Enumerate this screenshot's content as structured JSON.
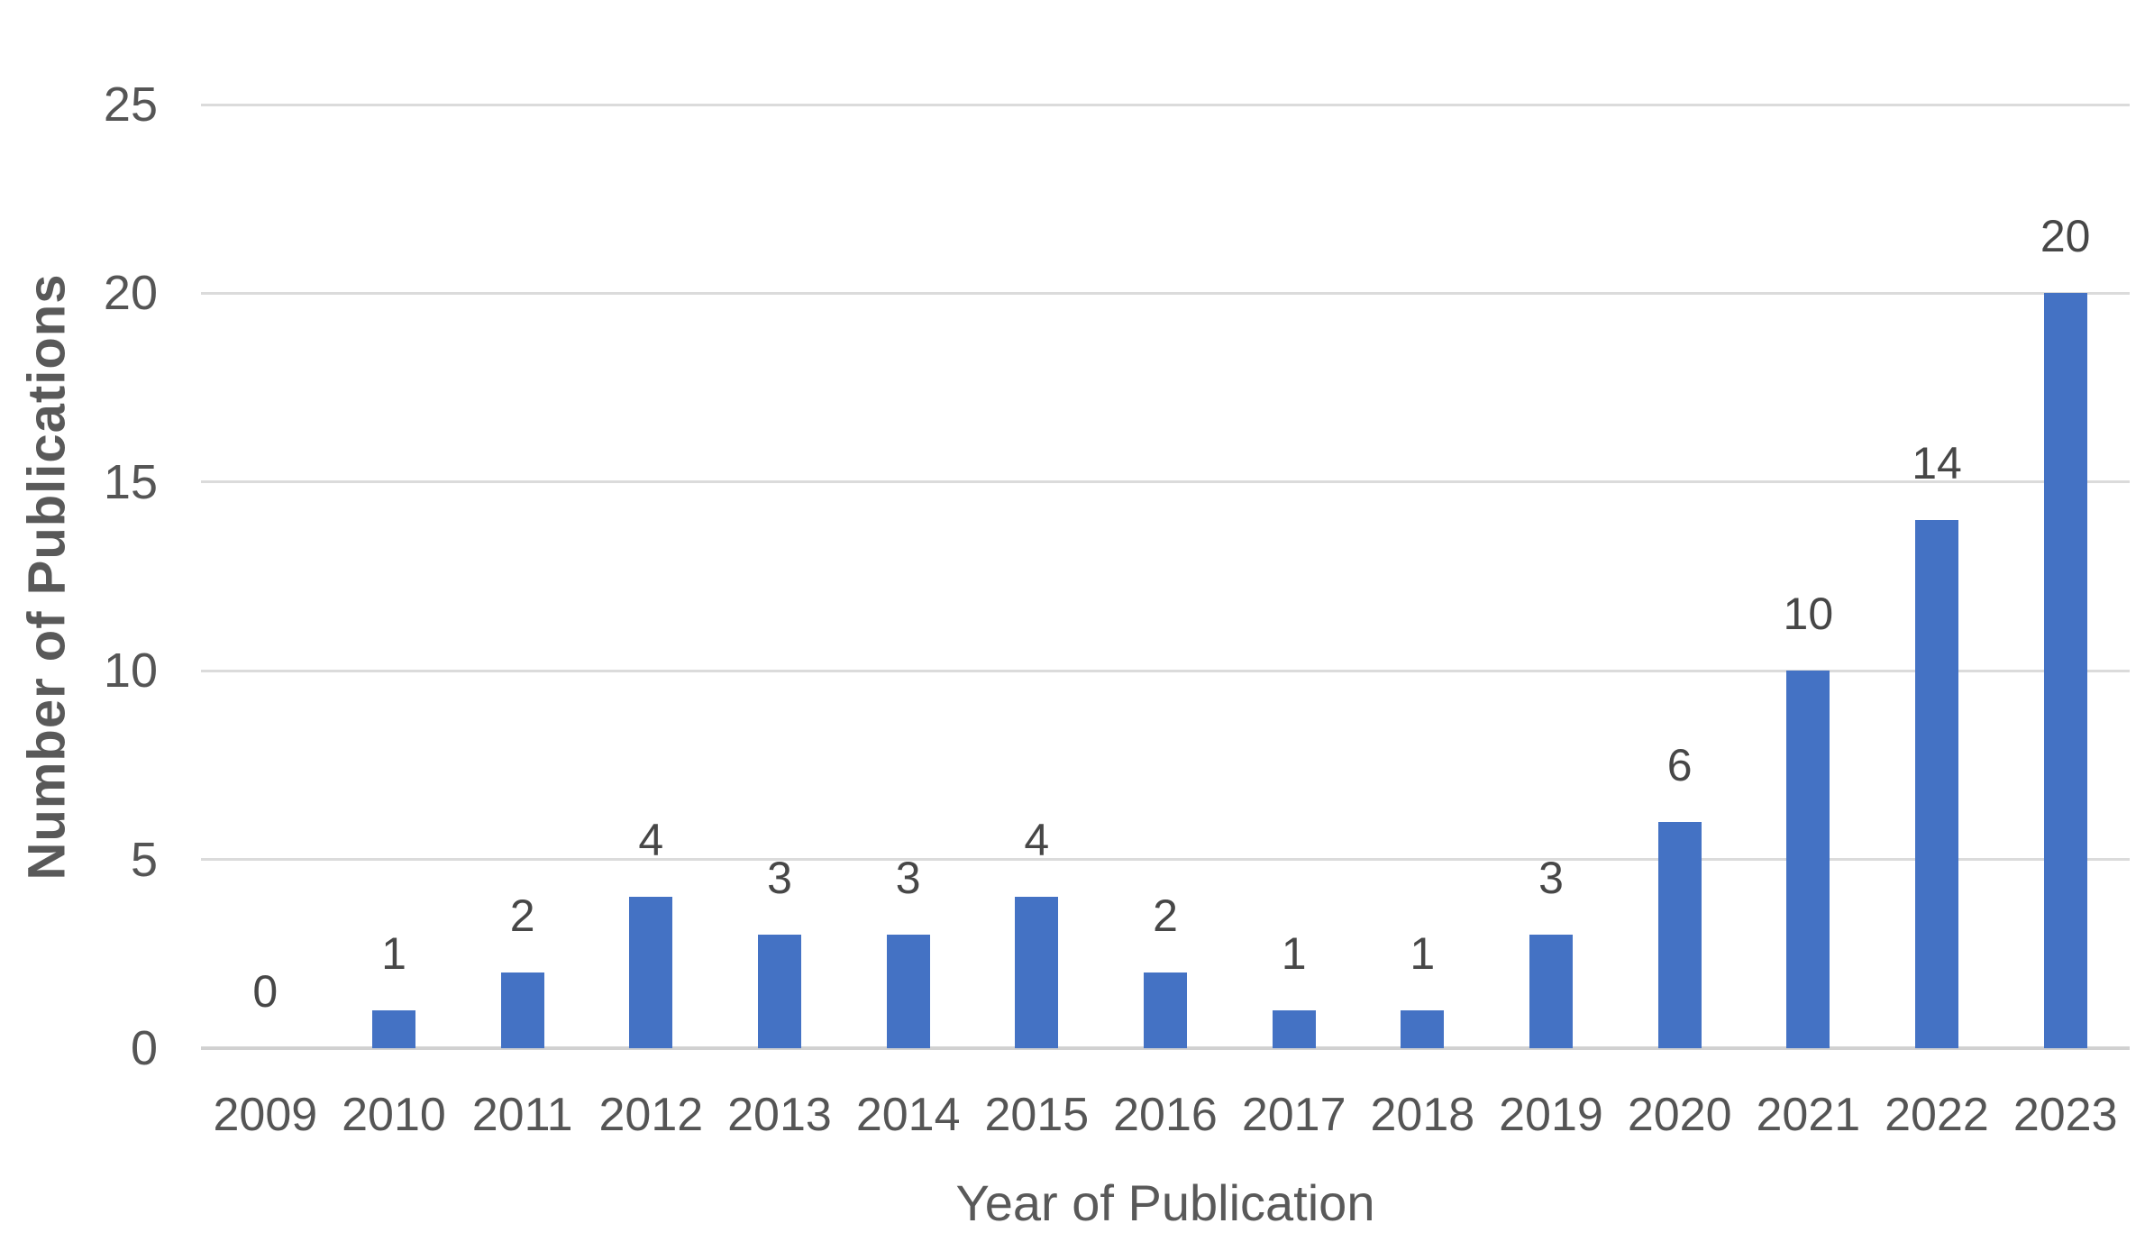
{
  "figure": {
    "background": "#FFFFFF"
  },
  "chart_data": {
    "type": "bar",
    "title": "",
    "xlabel": "Year of Publication",
    "ylabel": "Number of Publications",
    "categories": [
      "2009",
      "2010",
      "2011",
      "2012",
      "2013",
      "2014",
      "2015",
      "2016",
      "2017",
      "2018",
      "2019",
      "2020",
      "2021",
      "2022",
      "2023"
    ],
    "values": [
      0,
      1,
      2,
      4,
      3,
      3,
      4,
      2,
      1,
      1,
      3,
      6,
      10,
      14,
      20
    ],
    "data_labels_visible": true,
    "ylim": [
      0,
      25
    ],
    "yticks": [
      0,
      5,
      10,
      15,
      20,
      25
    ],
    "grid": "horizontal",
    "legend": "none",
    "colors": {
      "bar": "#4472C4",
      "gridline": "#DBDBDB",
      "axis_line": "#D1D1D1",
      "tick_label": "#555555",
      "data_label": "#474747",
      "axis_title": "#595959"
    }
  }
}
